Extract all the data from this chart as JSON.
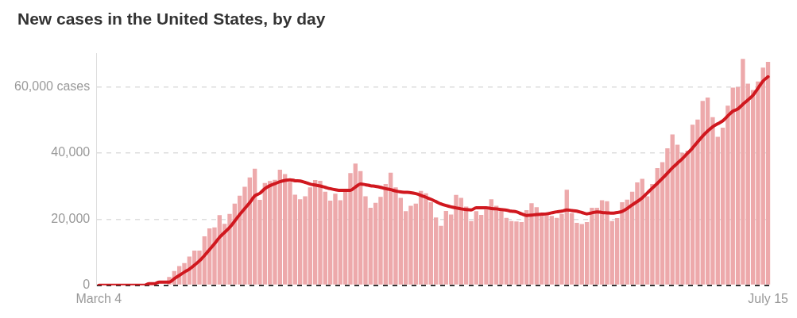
{
  "chart_data": {
    "type": "bar",
    "title": "New cases in the United States, by day",
    "categories": [
      "March 4",
      null,
      null,
      null,
      null,
      null,
      null,
      null,
      null,
      null,
      null,
      null,
      null,
      null,
      null,
      null,
      null,
      null,
      null,
      null,
      null,
      null,
      null,
      null,
      null,
      null,
      null,
      null,
      null,
      null,
      null,
      null,
      null,
      null,
      null,
      null,
      null,
      null,
      null,
      null,
      null,
      null,
      null,
      null,
      null,
      null,
      null,
      null,
      null,
      null,
      null,
      null,
      null,
      null,
      null,
      null,
      null,
      null,
      null,
      null,
      null,
      null,
      null,
      null,
      null,
      null,
      null,
      null,
      null,
      null,
      null,
      null,
      null,
      null,
      null,
      null,
      null,
      null,
      null,
      null,
      null,
      null,
      null,
      null,
      null,
      null,
      null,
      null,
      null,
      null,
      null,
      null,
      null,
      null,
      null,
      null,
      null,
      null,
      null,
      null,
      null,
      null,
      null,
      null,
      null,
      null,
      null,
      null,
      null,
      null,
      null,
      null,
      null,
      null,
      null,
      null,
      null,
      null,
      null,
      null,
      null,
      null,
      null,
      null,
      null,
      null,
      null,
      null,
      null,
      null,
      null,
      null,
      null,
      "July 15"
    ],
    "series": [
      {
        "color": "#eda9ab",
        "values": [
          null,
          null,
          null,
          null,
          null,
          null,
          null,
          null,
          null,
          null,
          null,
          null,
          null,
          null,
          2500,
          4300,
          5800,
          6700,
          8700,
          10500,
          10500,
          14800,
          17200,
          17500,
          21200,
          18600,
          21600,
          24700,
          27100,
          29800,
          32600,
          35200,
          25800,
          30900,
          31500,
          31900,
          34900,
          33600,
          31300,
          27400,
          26000,
          26900,
          29600,
          31800,
          31600,
          28300,
          25600,
          27700,
          25700,
          28700,
          33900,
          36800,
          34500,
          26900,
          23400,
          24900,
          26700,
          30600,
          34000,
          29600,
          26400,
          22400,
          24000,
          24700,
          28500,
          27800,
          25100,
          20500,
          18000,
          22500,
          21400,
          27300,
          26400,
          23800,
          19400,
          22400,
          21300,
          22900,
          26000,
          24000,
          22400,
          20400,
          19400,
          19300,
          19100,
          22700,
          24800,
          23600,
          21400,
          21800,
          21000,
          20400,
          21600,
          28900,
          21800,
          18900,
          18500,
          19100,
          23400,
          23400,
          25700,
          25400,
          19400,
          20300,
          25100,
          25900,
          28300,
          31100,
          32200,
          26900,
          30600,
          35400,
          37200,
          41400,
          45600,
          42500,
          40000,
          40700,
          48500,
          50100,
          55700,
          56700,
          50800,
          44900,
          47600,
          54300,
          59700,
          59900,
          68400,
          60900,
          59000,
          61600,
          65800,
          67500
        ]
      },
      {
        "type": "line",
        "color": "#d0181f",
        "values": [
          0,
          0,
          0,
          0,
          0,
          0,
          0,
          0,
          0,
          0,
          500,
          500,
          1000,
          1000,
          1000,
          2000,
          3000,
          4000,
          4900,
          6100,
          7400,
          9000,
          10800,
          12600,
          14500,
          16000,
          17500,
          19400,
          21400,
          23200,
          25000,
          27000,
          27800,
          29200,
          30100,
          30700,
          31300,
          31700,
          31900,
          31600,
          31500,
          31100,
          30600,
          30300,
          30000,
          29600,
          29200,
          28900,
          28700,
          28700,
          28700,
          29700,
          30600,
          30400,
          30100,
          29900,
          29600,
          29200,
          28900,
          28500,
          28200,
          28100,
          28000,
          27700,
          27200,
          26600,
          26000,
          25300,
          24600,
          24100,
          23700,
          23400,
          23100,
          22900,
          22800,
          23400,
          23400,
          23400,
          23200,
          23100,
          22900,
          22700,
          22400,
          22200,
          21600,
          21100,
          21200,
          21400,
          21500,
          21600,
          21900,
          22200,
          22400,
          22800,
          22600,
          22400,
          22000,
          21600,
          21900,
          22200,
          22000,
          21900,
          21800,
          22000,
          22300,
          23200,
          24300,
          25300,
          26400,
          27900,
          29400,
          30800,
          32300,
          33900,
          35500,
          36900,
          38300,
          39900,
          41500,
          43300,
          45100,
          46600,
          47900,
          48800,
          49700,
          51200,
          52600,
          53300,
          54700,
          56000,
          57400,
          59500,
          61700,
          63000
        ]
      }
    ],
    "ylim": [
      0,
      70000
    ],
    "yticks": [
      0,
      {
        "value": 20000,
        "label": "20,000"
      },
      {
        "value": 40000,
        "label": "40,000"
      },
      {
        "value": 60000,
        "label": "60,000 cases"
      }
    ],
    "grid": "y"
  }
}
